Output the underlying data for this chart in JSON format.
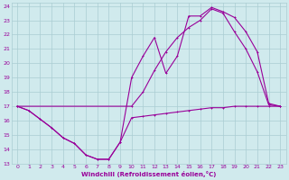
{
  "background_color": "#d0eaed",
  "grid_color": "#aacdd2",
  "line_color": "#990099",
  "xlabel": "Windchill (Refroidissement éolien,°C)",
  "xlim": [
    -0.5,
    23.5
  ],
  "ylim": [
    13,
    24.2
  ],
  "xticks": [
    0,
    1,
    2,
    3,
    4,
    5,
    6,
    7,
    8,
    9,
    10,
    11,
    12,
    13,
    14,
    15,
    16,
    17,
    18,
    19,
    20,
    21,
    22,
    23
  ],
  "yticks": [
    13,
    14,
    15,
    16,
    17,
    18,
    19,
    20,
    21,
    22,
    23,
    24
  ],
  "line1_x": [
    0,
    1,
    2,
    3,
    4,
    5,
    6,
    7,
    8,
    9,
    10,
    11,
    12,
    13,
    14,
    15,
    16,
    17,
    18,
    19,
    20,
    21,
    22,
    23
  ],
  "line1_y": [
    17.0,
    16.7,
    16.1,
    15.5,
    14.8,
    14.4,
    13.6,
    13.3,
    13.3,
    14.5,
    16.2,
    16.3,
    16.4,
    16.5,
    16.6,
    16.7,
    16.8,
    16.9,
    16.9,
    17.0,
    17.0,
    17.0,
    17.0,
    17.0
  ],
  "line2_x": [
    0,
    1,
    2,
    3,
    4,
    5,
    6,
    7,
    8,
    9,
    10,
    11,
    12,
    13,
    14,
    15,
    16,
    17,
    18,
    19,
    20,
    21,
    22,
    23
  ],
  "line2_y": [
    17.0,
    16.7,
    16.1,
    15.5,
    14.8,
    14.4,
    13.6,
    13.3,
    13.3,
    14.5,
    19.0,
    20.5,
    21.8,
    19.3,
    20.5,
    23.3,
    23.3,
    23.9,
    23.6,
    23.2,
    22.2,
    20.8,
    17.2,
    17.0
  ],
  "line3_x": [
    0,
    10,
    11,
    12,
    13,
    14,
    15,
    16,
    17,
    18,
    19,
    20,
    21,
    22,
    23
  ],
  "line3_y": [
    17.0,
    17.0,
    18.0,
    19.5,
    20.8,
    21.8,
    22.5,
    23.0,
    23.8,
    23.5,
    22.2,
    21.0,
    19.4,
    17.1,
    17.0
  ]
}
